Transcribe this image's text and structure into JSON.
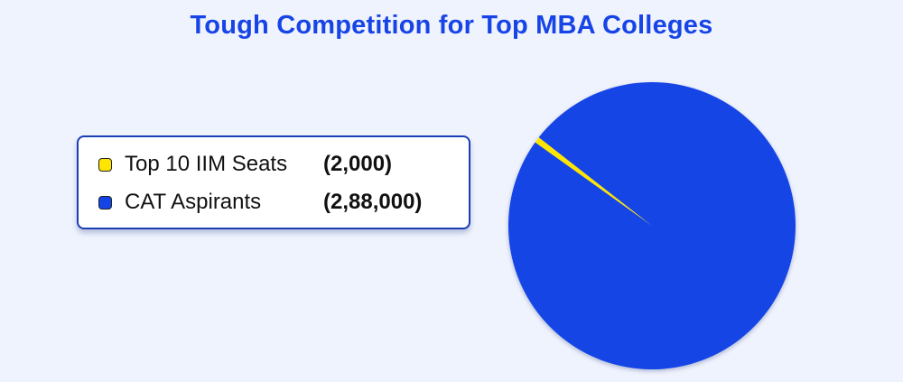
{
  "title": "Tough Competition for Top MBA Colleges",
  "legend": {
    "items": [
      {
        "label": "Top 10 IIM Seats",
        "value_text": "(2,000)",
        "color": "#ffe600"
      },
      {
        "label": "CAT Aspirants",
        "value_text": "(2,88,000)",
        "color": "#1444e6"
      }
    ]
  },
  "chart_data": {
    "type": "pie",
    "title": "Tough Competition for Top MBA Colleges",
    "slices": [
      {
        "label": "Top 10 IIM Seats",
        "value": 2000,
        "color": "#ffe600"
      },
      {
        "label": "CAT Aspirants",
        "value": 288000,
        "color": "#1444e6"
      }
    ],
    "legend_position": "left"
  }
}
